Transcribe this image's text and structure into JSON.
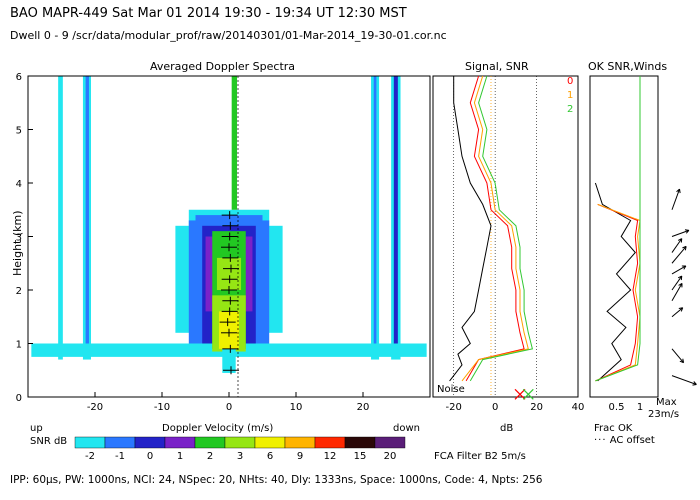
{
  "header": {
    "line1": "BAO  MAPR-449  Sat Mar 01 2014 19:30 - 19:34 UT 12:30 MST",
    "line2": "Dwell  0 - 9  /scr/data/modular_prof/raw/20140301/01-Mar-2014_19-30-01.cor.nc"
  },
  "footer": {
    "text": "IPP: 60μs, PW: 1000ns, NCI: 24, NSpec: 20, NHts: 40, Dly: 1333ns, Space: 1000ns, Code: 4, Npts: 256",
    "fca": "FCA Filter B2  5m/s"
  },
  "colorbar": {
    "label": "SNR dB",
    "levels": [
      "-2",
      "-1",
      "0",
      "1",
      "2",
      "3",
      "6",
      "9",
      "12",
      "15",
      "20"
    ],
    "colors": [
      "#22e6f0",
      "#2a78ff",
      "#2323c8",
      "#7a22c8",
      "#22c822",
      "#96e614",
      "#f0f000",
      "#ffb400",
      "#ff2800",
      "#2a0808",
      "#5a1e78"
    ],
    "up": "up",
    "down": "down"
  },
  "chart_data": [
    {
      "type": "heatmap",
      "title": "Averaged Doppler Spectra",
      "xlabel": "Doppler Velocity (m/s)",
      "ylabel": "Height (km)",
      "xlim": [
        -30,
        30
      ],
      "ylim": [
        0,
        6
      ],
      "xticks": [
        -20,
        -10,
        0,
        10,
        20
      ],
      "yticks": [
        0,
        1,
        2,
        3,
        4,
        5,
        6
      ],
      "radial_velocity_profile": [
        {
          "h": 0.5,
          "v": 0.3
        },
        {
          "h": 0.9,
          "v": 0.2
        },
        {
          "h": 1.2,
          "v": 0.0
        },
        {
          "h": 1.4,
          "v": -0.2
        },
        {
          "h": 1.6,
          "v": 0.1
        },
        {
          "h": 1.8,
          "v": 0.2
        },
        {
          "h": 2.0,
          "v": 0.0
        },
        {
          "h": 2.2,
          "v": 0.1
        },
        {
          "h": 2.4,
          "v": 0.3
        },
        {
          "h": 2.6,
          "v": 0.2
        },
        {
          "h": 2.8,
          "v": 0.0
        },
        {
          "h": 3.0,
          "v": 0.1
        },
        {
          "h": 3.2,
          "v": 0.2
        },
        {
          "h": 3.4,
          "v": 0.1
        }
      ]
    },
    {
      "type": "line",
      "title": "Signal, SNR",
      "xlabel": "dB",
      "xlim": [
        -30,
        40
      ],
      "ylim": [
        0,
        6
      ],
      "xticks": [
        -20,
        0,
        20,
        40
      ],
      "noise_label": "Noise",
      "series": [
        {
          "color": "#000000",
          "points": [
            [
              -22,
              0.3
            ],
            [
              -16,
              0.6
            ],
            [
              -18,
              0.8
            ],
            [
              -12,
              1.0
            ],
            [
              -16,
              1.3
            ],
            [
              -10,
              1.6
            ],
            [
              -8,
              2.0
            ],
            [
              -6,
              2.4
            ],
            [
              -4,
              2.8
            ],
            [
              -2,
              3.2
            ],
            [
              -6,
              3.6
            ],
            [
              -12,
              4.0
            ],
            [
              -16,
              4.5
            ],
            [
              -18,
              5.0
            ],
            [
              -20,
              5.5
            ],
            [
              -20,
              6.0
            ]
          ]
        },
        {
          "color": "#ff0000",
          "points": [
            [
              -14,
              0.3
            ],
            [
              -8,
              0.7
            ],
            [
              14,
              0.9
            ],
            [
              12,
              1.2
            ],
            [
              10,
              1.6
            ],
            [
              10,
              2.0
            ],
            [
              8,
              2.4
            ],
            [
              8,
              2.8
            ],
            [
              6,
              3.2
            ],
            [
              -2,
              3.5
            ],
            [
              -4,
              4.0
            ],
            [
              -10,
              4.5
            ],
            [
              -8,
              5.0
            ],
            [
              -12,
              5.5
            ],
            [
              -8,
              6.0
            ]
          ]
        },
        {
          "color": "#ffa000",
          "points": [
            [
              -16,
              0.3
            ],
            [
              -8,
              0.7
            ],
            [
              16,
              0.9
            ],
            [
              14,
              1.2
            ],
            [
              12,
              1.6
            ],
            [
              12,
              2.0
            ],
            [
              10,
              2.4
            ],
            [
              10,
              2.8
            ],
            [
              8,
              3.2
            ],
            [
              0,
              3.5
            ],
            [
              -2,
              4.0
            ],
            [
              -8,
              4.5
            ],
            [
              -6,
              5.0
            ],
            [
              -10,
              5.5
            ],
            [
              -6,
              6.0
            ]
          ]
        },
        {
          "color": "#32c832",
          "points": [
            [
              -12,
              0.3
            ],
            [
              -6,
              0.7
            ],
            [
              18,
              0.9
            ],
            [
              16,
              1.2
            ],
            [
              14,
              1.6
            ],
            [
              14,
              2.0
            ],
            [
              12,
              2.4
            ],
            [
              12,
              2.8
            ],
            [
              10,
              3.2
            ],
            [
              2,
              3.5
            ],
            [
              0,
              4.0
            ],
            [
              -6,
              4.5
            ],
            [
              -4,
              5.0
            ],
            [
              -8,
              5.5
            ],
            [
              -4,
              6.0
            ]
          ]
        }
      ],
      "markers": [
        {
          "x": 12,
          "y": 0.05,
          "color": "#ff0000"
        },
        {
          "x": 16,
          "y": 0.05,
          "color": "#32c832"
        }
      ]
    },
    {
      "type": "line",
      "title": "OK SNR,Winds",
      "xlabel": "Frac OK",
      "xlim": [
        0,
        1
      ],
      "ylim": [
        0,
        6
      ],
      "xticks": [
        "0.5",
        "1"
      ],
      "legend": [
        {
          "label": "0",
          "color": "#ff0000"
        },
        {
          "label": "1",
          "color": "#ffa000"
        },
        {
          "label": "2",
          "color": "#32c832"
        }
      ],
      "ac_label": "AC offset",
      "max_label": "Max",
      "max_value": "23m/s",
      "wind_barbs": [
        {
          "h": 3.5,
          "dir_deg": 20,
          "speed": 14
        },
        {
          "h": 3.0,
          "dir_deg": 70,
          "speed": 10
        },
        {
          "h": 2.7,
          "dir_deg": 35,
          "speed": 9
        },
        {
          "h": 2.5,
          "dir_deg": 40,
          "speed": 14
        },
        {
          "h": 2.3,
          "dir_deg": 60,
          "speed": 8
        },
        {
          "h": 2.0,
          "dir_deg": 35,
          "speed": 9
        },
        {
          "h": 1.8,
          "dir_deg": 30,
          "speed": 12
        },
        {
          "h": 1.5,
          "dir_deg": 50,
          "speed": 6
        },
        {
          "h": 0.9,
          "dir_deg": 140,
          "speed": 10
        },
        {
          "h": 0.4,
          "dir_deg": 110,
          "speed": 18
        }
      ]
    }
  ]
}
